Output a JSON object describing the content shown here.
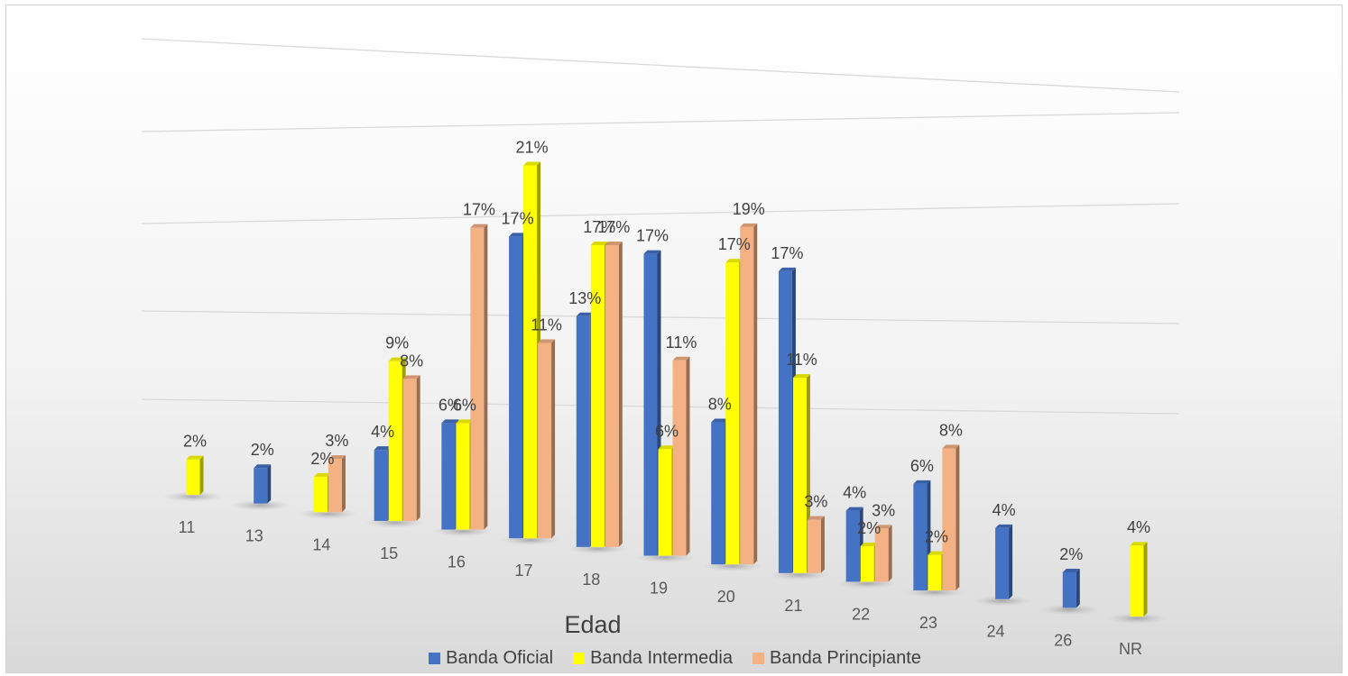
{
  "chart_data": {
    "type": "bar",
    "xlabel": "Edad",
    "categories": [
      "11",
      "13",
      "14",
      "15",
      "16",
      "17",
      "18",
      "19",
      "20",
      "21",
      "22",
      "23",
      "24",
      "26",
      "NR"
    ],
    "series": [
      {
        "name": "Banda Oficial",
        "color": "#4472c4",
        "values": [
          null,
          0.02,
          null,
          0.04,
          0.06,
          0.17,
          0.13,
          0.17,
          0.08,
          0.17,
          0.04,
          0.06,
          0.04,
          0.02,
          null
        ],
        "labels": [
          "",
          "2%",
          "",
          "4%",
          "6%",
          "17%",
          "13%",
          "17%",
          "8%",
          "17%",
          "4%",
          "6%",
          "4%",
          "2%",
          ""
        ]
      },
      {
        "name": "Banda Intermedia",
        "color": "#ffff00",
        "values": [
          0.02,
          null,
          0.02,
          0.09,
          0.06,
          0.21,
          0.17,
          0.06,
          0.17,
          0.11,
          0.02,
          0.02,
          null,
          null,
          0.04
        ],
        "labels": [
          "2%",
          "",
          "2%",
          "9%",
          "6%",
          "21%",
          "17%",
          "6%",
          "17%",
          "11%",
          "2%",
          "2%",
          "",
          "",
          "4%"
        ]
      },
      {
        "name": "Banda Principiante",
        "color": "#f4b183",
        "values": [
          null,
          null,
          0.03,
          0.08,
          0.17,
          0.11,
          0.17,
          0.11,
          0.19,
          0.03,
          0.03,
          0.08,
          null,
          null,
          null
        ],
        "labels": [
          "",
          "",
          "3%",
          "8%",
          "17%",
          "11%",
          "17%",
          "11%",
          "19%",
          "3%",
          "3%",
          "8%",
          "",
          "",
          ""
        ]
      }
    ],
    "grid": true,
    "legend_position": "bottom"
  }
}
